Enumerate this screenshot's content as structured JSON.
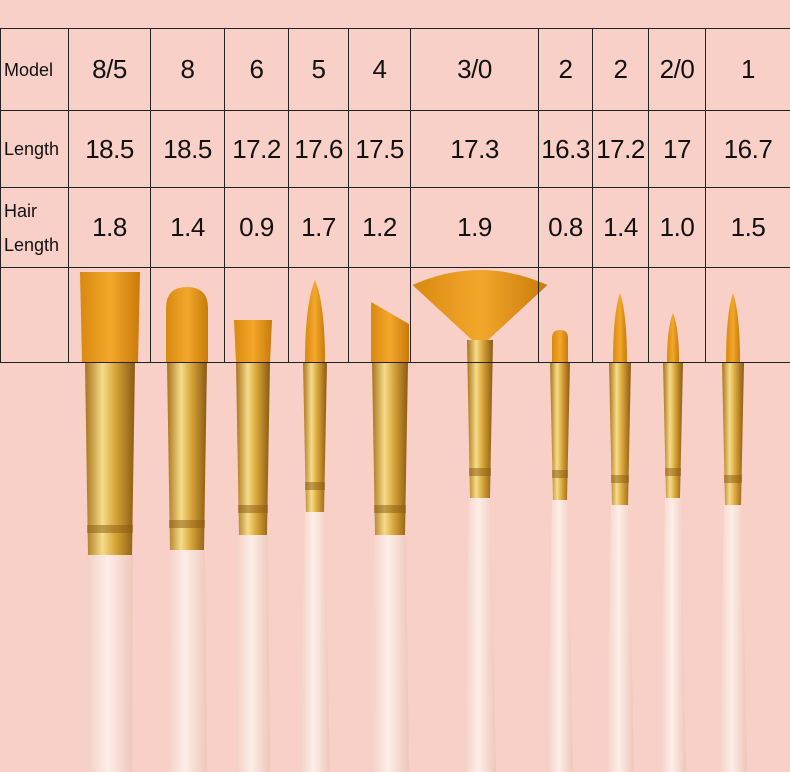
{
  "table": {
    "rows": [
      [
        "Model",
        "8/5",
        "8",
        "6",
        "5",
        "4",
        "3/0",
        "2",
        "2",
        "2/0",
        "1"
      ],
      [
        "Length",
        "18.5",
        "18.5",
        "17.2",
        "17.6",
        "17.5",
        "17.3",
        "16.3",
        "17.2",
        "17",
        "16.7"
      ],
      [
        "Hair Length",
        "1.8",
        "1.4",
        "0.9",
        "1.7",
        "1.2",
        "1.9",
        "0.8",
        "1.4",
        "1.0",
        "1.5"
      ]
    ]
  }
}
